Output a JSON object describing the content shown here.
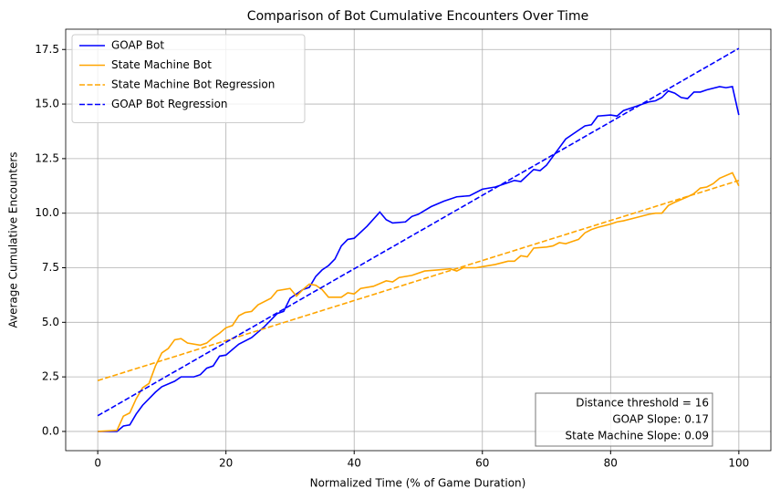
{
  "chart_data": {
    "type": "line",
    "title": "Comparison of Bot Cumulative Encounters Over Time",
    "xlabel": "Normalized Time (% of Game Duration)",
    "ylabel": "Average Cumulative Encounters",
    "xlim": [
      -5,
      105
    ],
    "ylim": [
      -0.88,
      18.43
    ],
    "xticks": [
      0,
      20,
      40,
      60,
      80,
      100
    ],
    "yticks": [
      {
        "value": 0,
        "label": "0.0"
      },
      2.5,
      {
        "value": 5,
        "label": "5.0"
      },
      7.5,
      {
        "value": 10,
        "label": "10.0"
      },
      12.5,
      {
        "value": 15,
        "label": "15.0"
      },
      17.5
    ],
    "grid": true,
    "legend": "upper left",
    "series": [
      {
        "name": "GOAP Bot",
        "color": "#0000ff",
        "style": "solid",
        "x": [
          0,
          2,
          3,
          4,
          5,
          6,
          7,
          8,
          9,
          10,
          12,
          13,
          15,
          16,
          17,
          18,
          19,
          20,
          22,
          24,
          26,
          28,
          29,
          30,
          32,
          33,
          34,
          35,
          36,
          37,
          38,
          39,
          40,
          42,
          44,
          45,
          46,
          48,
          49,
          50,
          52,
          54,
          56,
          58,
          60,
          62,
          64,
          65,
          66,
          68,
          69,
          70,
          72,
          73,
          75,
          76,
          77,
          78,
          80,
          81,
          82,
          84,
          86,
          87,
          88,
          89,
          90,
          91,
          92,
          93,
          94,
          95,
          97,
          98,
          99,
          100
        ],
        "values": [
          0,
          0,
          0,
          0.25,
          0.3,
          0.8,
          1.2,
          1.5,
          1.8,
          2.05,
          2.3,
          2.5,
          2.5,
          2.6,
          2.9,
          3.0,
          3.45,
          3.5,
          4.0,
          4.3,
          4.8,
          5.4,
          5.5,
          6.1,
          6.5,
          6.6,
          7.1,
          7.4,
          7.6,
          7.9,
          8.5,
          8.8,
          8.85,
          9.4,
          10.05,
          9.7,
          9.55,
          9.6,
          9.85,
          9.95,
          10.3,
          10.55,
          10.75,
          10.8,
          11.1,
          11.2,
          11.4,
          11.5,
          11.45,
          12.0,
          11.95,
          12.2,
          13.0,
          13.4,
          13.8,
          14.0,
          14.05,
          14.45,
          14.5,
          14.45,
          14.7,
          14.9,
          15.1,
          15.15,
          15.3,
          15.6,
          15.5,
          15.3,
          15.25,
          15.55,
          15.55,
          15.65,
          15.8,
          15.75,
          15.8,
          14.5
        ]
      },
      {
        "name": "State Machine Bot",
        "color": "#ffa500",
        "style": "solid",
        "x": [
          0,
          3,
          4,
          5,
          6,
          7,
          8,
          9,
          10,
          11,
          12,
          13,
          14,
          16,
          17,
          18,
          19,
          20,
          21,
          22,
          23,
          24,
          25,
          27,
          28,
          30,
          31,
          32,
          33,
          34,
          35,
          36,
          38,
          39,
          40,
          41,
          43,
          45,
          46,
          47,
          49,
          51,
          53,
          55,
          56,
          57,
          59,
          60,
          62,
          64,
          65,
          66,
          67,
          68,
          70,
          71,
          72,
          73,
          74,
          75,
          76,
          77,
          78,
          80,
          81,
          82,
          84,
          86,
          87,
          88,
          89,
          90,
          92,
          93,
          94,
          95,
          96,
          97,
          99,
          100
        ],
        "values": [
          0,
          0.05,
          0.7,
          0.85,
          1.5,
          2.0,
          2.2,
          3.0,
          3.6,
          3.8,
          4.2,
          4.25,
          4.05,
          3.95,
          4.05,
          4.3,
          4.5,
          4.75,
          4.85,
          5.3,
          5.45,
          5.5,
          5.8,
          6.1,
          6.45,
          6.55,
          6.2,
          6.5,
          6.75,
          6.7,
          6.5,
          6.15,
          6.15,
          6.35,
          6.3,
          6.55,
          6.65,
          6.9,
          6.85,
          7.05,
          7.15,
          7.35,
          7.4,
          7.45,
          7.35,
          7.5,
          7.5,
          7.55,
          7.65,
          7.8,
          7.8,
          8.05,
          8.0,
          8.4,
          8.45,
          8.5,
          8.65,
          8.6,
          8.7,
          8.8,
          9.1,
          9.25,
          9.35,
          9.5,
          9.6,
          9.65,
          9.8,
          9.95,
          10.0,
          10.0,
          10.35,
          10.5,
          10.75,
          10.9,
          11.15,
          11.2,
          11.35,
          11.6,
          11.85,
          11.25
        ]
      },
      {
        "name": "State Machine Bot Regression",
        "color": "#ffa500",
        "style": "dashed",
        "x": [
          0,
          100
        ],
        "values": [
          2.33,
          11.5
        ]
      },
      {
        "name": "GOAP Bot Regression",
        "color": "#0000ff",
        "style": "dashed",
        "x": [
          0,
          100
        ],
        "values": [
          0.72,
          17.55
        ]
      }
    ],
    "annotation": [
      "Distance threshold = 16",
      "GOAP Slope: 0.17",
      "State Machine Slope: 0.09"
    ]
  }
}
